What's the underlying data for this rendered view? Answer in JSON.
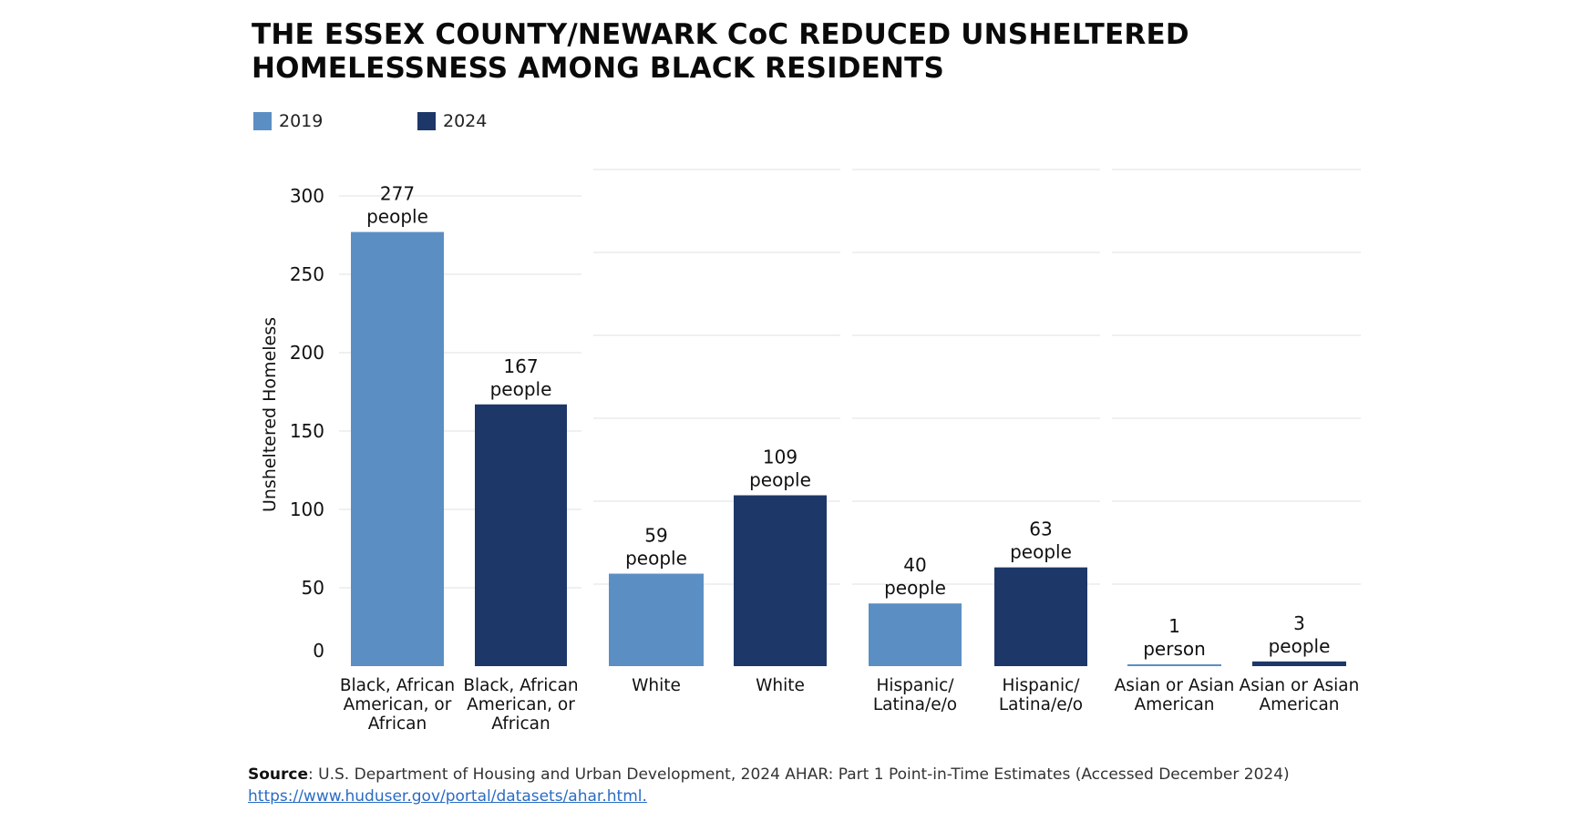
{
  "title_lines": [
    "THE ESSEX COUNTY/NEWARK CoC REDUCED UNSHELTERED",
    "HOMELESSNESS AMONG BLACK RESIDENTS"
  ],
  "legend": [
    {
      "label": "2019",
      "color": "#5b8fc4"
    },
    {
      "label": "2024",
      "color": "#1d3768"
    }
  ],
  "source": {
    "label": "Source",
    "text": ": U.S. Department of Housing and Urban Development, 2024 AHAR: Part 1 Point-in-Time Estimates (Accessed December 2024) ",
    "link": "https://www.huduser.gov/portal/datasets/ahar.html."
  },
  "chart_data": {
    "type": "bar",
    "ylabel": "Unsheltered Homeless",
    "ylim": [
      0,
      300
    ],
    "yticks": [
      0,
      50,
      100,
      150,
      200,
      250,
      300
    ],
    "grid": true,
    "legend_position": "top-left",
    "groups": [
      {
        "bars": [
          {
            "series": "2019",
            "value": 277,
            "value_label": "277",
            "unit_label": "people",
            "category_lines": [
              "Black, African",
              "American, or",
              "African"
            ]
          },
          {
            "series": "2024",
            "value": 167,
            "value_label": "167",
            "unit_label": "people",
            "category_lines": [
              "Black, African",
              "American, or",
              "African"
            ]
          }
        ]
      },
      {
        "bars": [
          {
            "series": "2019",
            "value": 59,
            "value_label": "59",
            "unit_label": "people",
            "category_lines": [
              "White"
            ]
          },
          {
            "series": "2024",
            "value": 109,
            "value_label": "109",
            "unit_label": "people",
            "category_lines": [
              "White"
            ]
          }
        ]
      },
      {
        "bars": [
          {
            "series": "2019",
            "value": 40,
            "value_label": "40",
            "unit_label": "people",
            "category_lines": [
              "Hispanic/",
              "Latina/e/o"
            ]
          },
          {
            "series": "2024",
            "value": 63,
            "value_label": "63",
            "unit_label": "people",
            "category_lines": [
              "Hispanic/",
              "Latina/e/o"
            ]
          }
        ]
      },
      {
        "bars": [
          {
            "series": "2019",
            "value": 1,
            "value_label": "1",
            "unit_label": "person",
            "category_lines": [
              "Asian or Asian",
              "American"
            ]
          },
          {
            "series": "2024",
            "value": 3,
            "value_label": "3",
            "unit_label": "people",
            "category_lines": [
              "Asian or Asian",
              "American"
            ]
          }
        ]
      }
    ]
  }
}
